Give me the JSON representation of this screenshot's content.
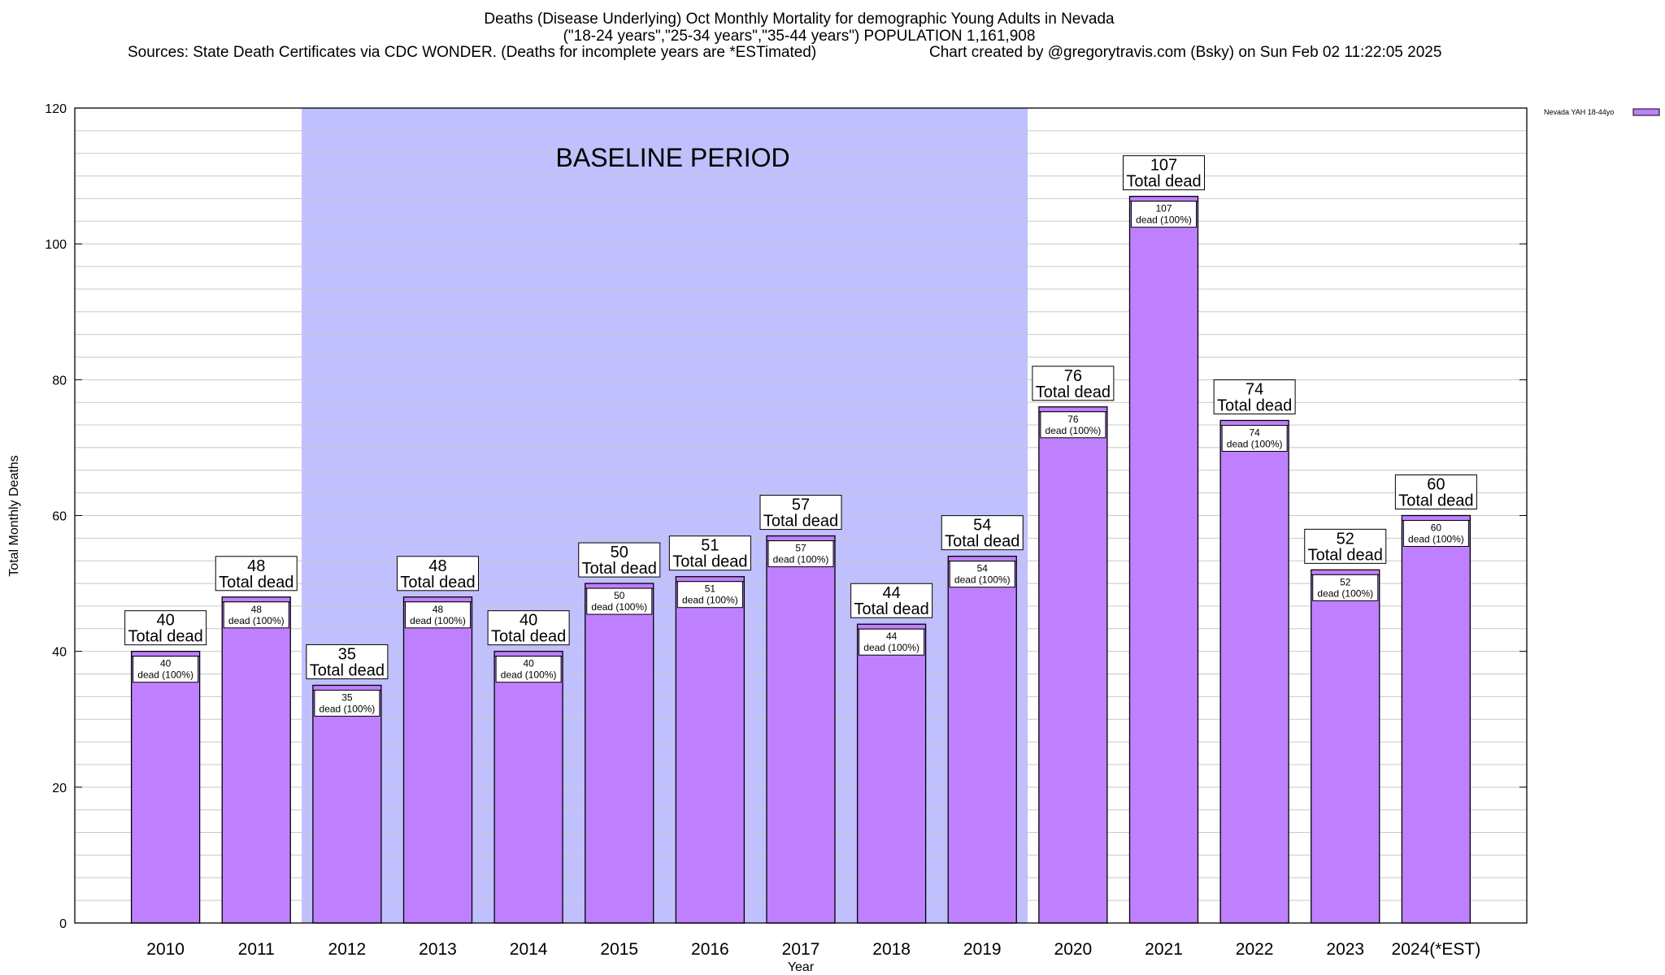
{
  "header": {
    "title_line1": "Deaths (Disease Underlying) Oct Monthly Mortality for demographic Young Adults in Nevada",
    "title_line2": "(\"18-24 years\",\"25-34 years\",\"35-44 years\") POPULATION 1,161,908",
    "sources": "Sources: State Death Certificates via CDC WONDER. (Deaths for incomplete years are *ESTimated)",
    "credit": "Chart created by @gregorytravis.com (Bsky) on Sun Feb 02 11:22:05 2025"
  },
  "chart_data": {
    "type": "bar",
    "categories": [
      "2010",
      "2011",
      "2012",
      "2013",
      "2014",
      "2015",
      "2016",
      "2017",
      "2018",
      "2019",
      "2020",
      "2021",
      "2022",
      "2023",
      "2024(*EST)"
    ],
    "series": [
      {
        "name": "Nevada YAH 18-44yo",
        "values": [
          40,
          48,
          35,
          48,
          40,
          50,
          51,
          57,
          44,
          54,
          76,
          107,
          74,
          52,
          60
        ]
      }
    ],
    "xlabel": "Year",
    "ylabel": "Total Monthly Deaths",
    "ylim": [
      0,
      120
    ],
    "yticks": [
      0,
      20,
      40,
      60,
      80,
      100,
      120
    ],
    "grid": true,
    "legend_position": "top-right",
    "baseline_band": {
      "label": "BASELINE PERIOD",
      "from_category": "2012",
      "to_category": "2019"
    },
    "bar_label_total": "Total dead",
    "bar_label_inner": "dead (100%)",
    "colors": {
      "bar": "#bf80ff",
      "bar_outline": "#000000",
      "baseline_band": "#c0c0ff",
      "grid": "#c8c8c8"
    }
  }
}
